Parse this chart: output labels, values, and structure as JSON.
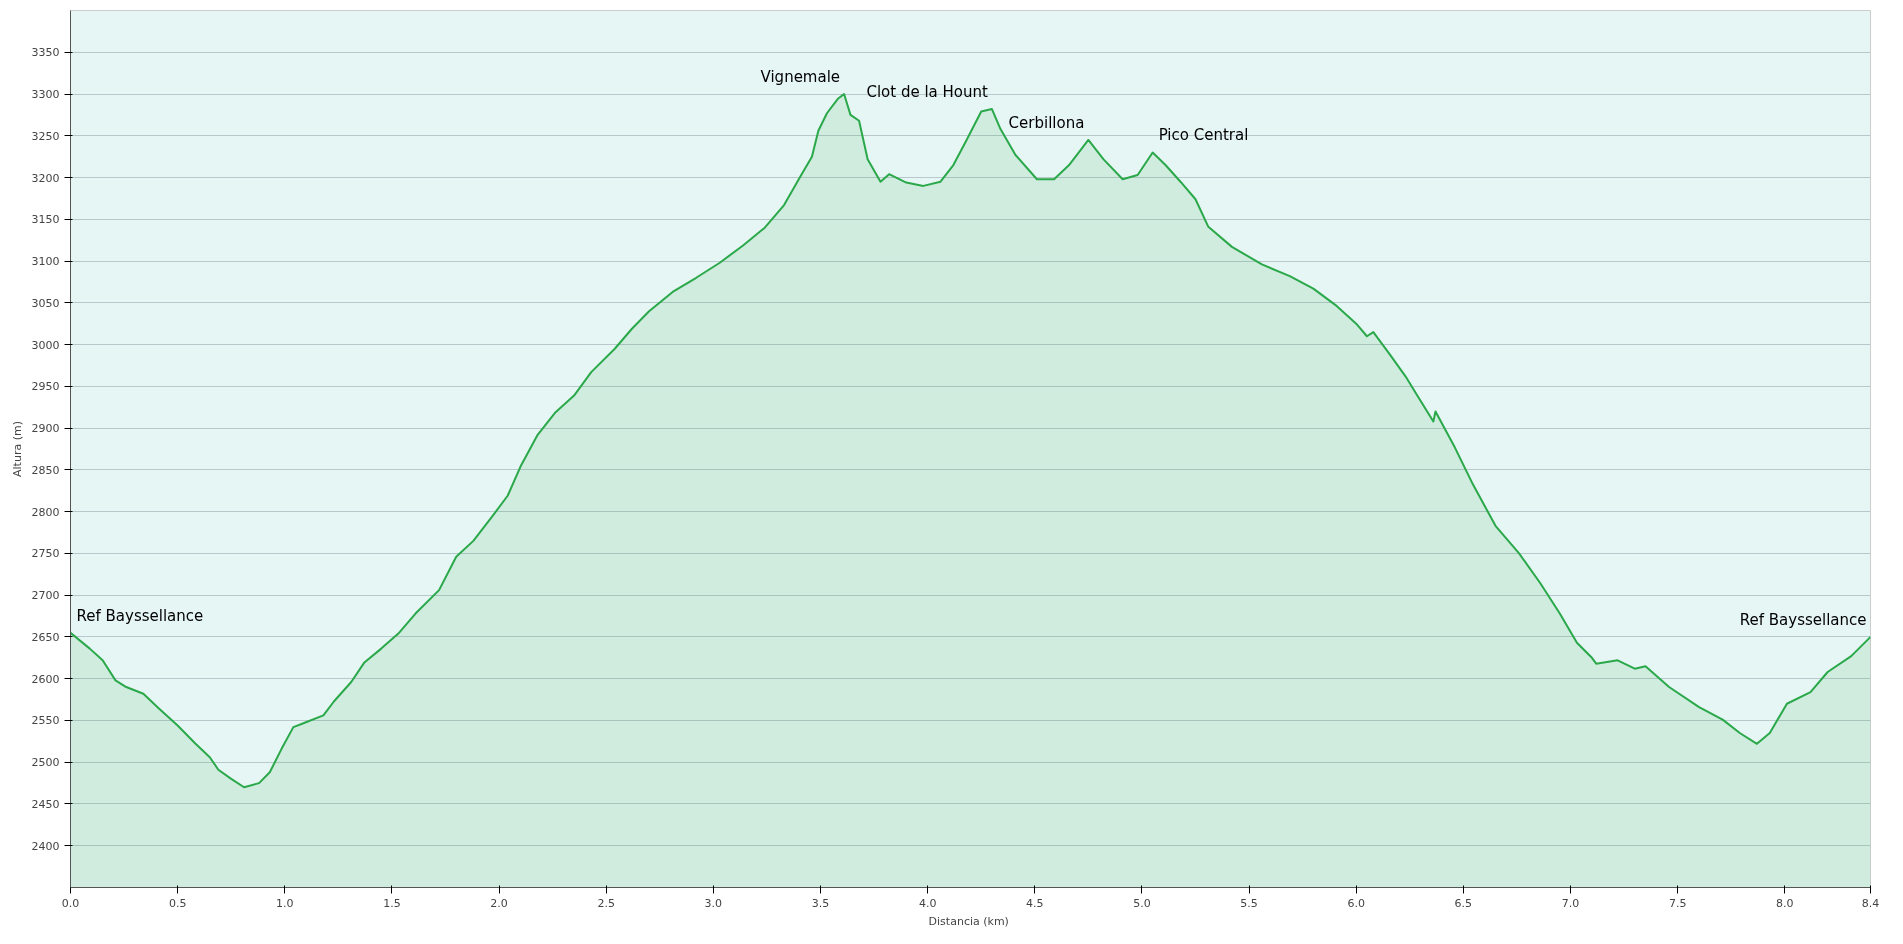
{
  "chart_data": {
    "type": "area",
    "xlabel": "Distancia  (km)",
    "ylabel": "Altura (m)",
    "xlim": [
      0,
      8.4
    ],
    "ylim": [
      2350,
      3400
    ],
    "grid": "y",
    "xticks": [
      {
        "value": 0,
        "label": "0.0"
      },
      0.5,
      {
        "value": 1,
        "label": "1.0"
      },
      1.5,
      {
        "value": 2,
        "label": "2.0"
      },
      2.5,
      {
        "value": 3,
        "label": "3.0"
      },
      3.5,
      {
        "value": 4,
        "label": "4.0"
      },
      4.5,
      {
        "value": 5,
        "label": "5.0"
      },
      5.5,
      {
        "value": 6,
        "label": "6.0"
      },
      6.5,
      {
        "value": 7,
        "label": "7.0"
      },
      7.5,
      {
        "value": 8,
        "label": "8.0"
      },
      8.4
    ],
    "yticks": [
      2400,
      2450,
      2500,
      2550,
      2600,
      2650,
      2700,
      2750,
      2800,
      2850,
      2900,
      2950,
      3000,
      3050,
      3100,
      3150,
      3200,
      3250,
      3300,
      3350
    ],
    "series": [
      {
        "color": "#2aa84a",
        "x": [
          0,
          0.09,
          0.15,
          0.21,
          0.26,
          0.34,
          0.41,
          0.5,
          0.58,
          0.65,
          0.69,
          0.75,
          0.81,
          0.88,
          0.93,
          0.985,
          1.04,
          1.09,
          1.18,
          1.23,
          1.31,
          1.37,
          1.45,
          1.53,
          1.61,
          1.72,
          1.8,
          1.88,
          1.97,
          2.04,
          2.1,
          2.18,
          2.26,
          2.35,
          2.43,
          2.54,
          2.62,
          2.7,
          2.81,
          2.92,
          3.03,
          3.14,
          3.24,
          3.33,
          3.41,
          3.46,
          3.49,
          3.53,
          3.58,
          3.61,
          3.64,
          3.68,
          3.72,
          3.78,
          3.82,
          3.9,
          3.98,
          4.06,
          4.12,
          4.18,
          4.25,
          4.3,
          4.34,
          4.41,
          4.51,
          4.59,
          4.66,
          4.75,
          4.82,
          4.91,
          4.98,
          5.05,
          5.11,
          5.18,
          5.25,
          5.31,
          5.42,
          5.56,
          5.69,
          5.8,
          5.91,
          6.0,
          6.05,
          6.08,
          6.16,
          6.23,
          6.29,
          6.36,
          6.37,
          6.46,
          6.54,
          6.65,
          6.76,
          6.86,
          6.95,
          7.03,
          7.1,
          7.12,
          7.22,
          7.3,
          7.35,
          7.46,
          7.6,
          7.71,
          7.79,
          7.87,
          7.93,
          8.01,
          8.12,
          8.2,
          8.31,
          8.4
        ],
        "values": [
          2655,
          2636,
          2622,
          2598,
          2590,
          2582,
          2565,
          2544,
          2523,
          2506,
          2491,
          2480,
          2470,
          2475,
          2488,
          2516,
          2542,
          2547,
          2556,
          2573,
          2596,
          2619,
          2636,
          2654,
          2678,
          2706,
          2746,
          2765,
          2795,
          2819,
          2854,
          2892,
          2918,
          2939,
          2967,
          2995,
          3019,
          3040,
          3063,
          3080,
          3098,
          3119,
          3140,
          3167,
          3203,
          3225,
          3256,
          3277,
          3294,
          3300,
          3275,
          3268,
          3222,
          3195,
          3204,
          3194,
          3190,
          3195,
          3215,
          3244,
          3279,
          3282,
          3258,
          3227,
          3198,
          3198,
          3215,
          3245,
          3222,
          3198,
          3203,
          3230,
          3215,
          3195,
          3174,
          3141,
          3117,
          3096,
          3082,
          3067,
          3046,
          3025,
          3010,
          3015,
          2987,
          2962,
          2937,
          2908,
          2920,
          2877,
          2835,
          2783,
          2750,
          2714,
          2678,
          2643,
          2625,
          2618,
          2622,
          2612,
          2615,
          2590,
          2566,
          2551,
          2535,
          2522,
          2535,
          2570,
          2584,
          2608,
          2627,
          2650
        ]
      }
    ],
    "annotations": [
      {
        "text": "Ref Bayssellance",
        "x": 0,
        "y": 2655
      },
      {
        "text": "Vignemale",
        "x": 3.61,
        "y": 3300
      },
      {
        "text": "Clot de la Hount",
        "x": 4.3,
        "y": 3282
      },
      {
        "text": "Cerbillona",
        "x": 4.75,
        "y": 3245
      },
      {
        "text": "Pico Central",
        "x": 5.05,
        "y": 3230
      },
      {
        "text": "Ref Bayssellance",
        "x": 8.4,
        "y": 2650
      }
    ]
  }
}
